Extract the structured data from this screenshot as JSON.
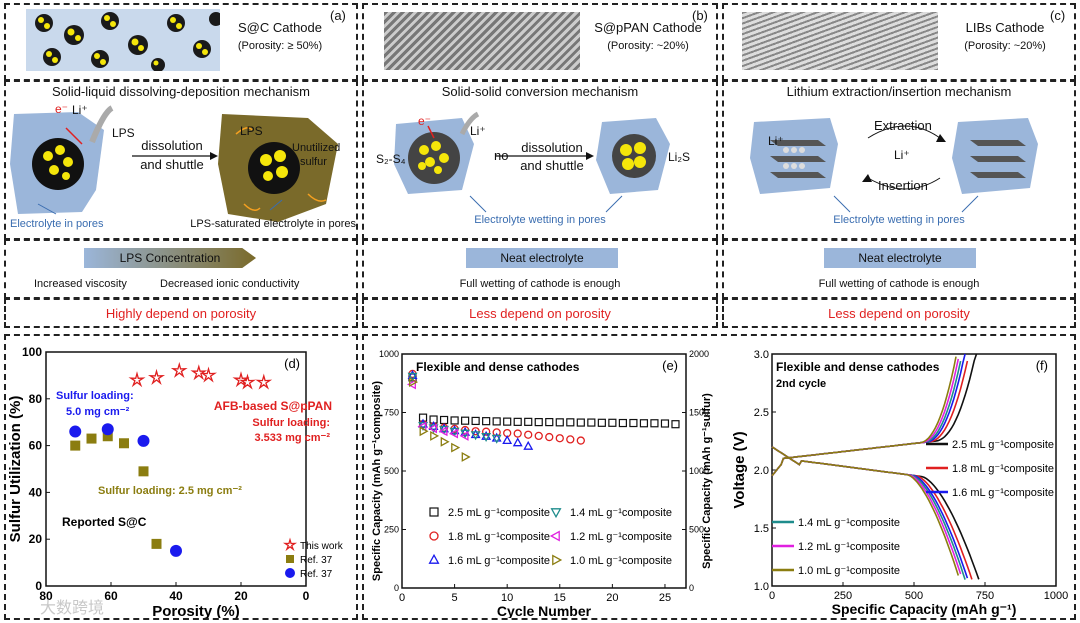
{
  "colors": {
    "red": "#e02020",
    "blue": "#3a6db0",
    "olive": "#8b7d10",
    "teal": "#1e8c8c",
    "magenta": "#e020e0",
    "lightblue": "#9bb6da",
    "sulfur": "#f5e60a"
  },
  "panels": {
    "a": {
      "tag": "(a)",
      "title": "S@C Cathode",
      "porosity": "(Porosity: ≥ 50%)",
      "mechanism": "Solid-liquid dissolving-deposition mechanism",
      "ions": "Li⁺",
      "electron": "e⁻",
      "lps": "LPS",
      "arrow_top": "dissolution",
      "arrow_bottom": "and shuttle",
      "lps_inner": "LPS",
      "unutilized": "Unutilized",
      "unutilized2": "sulfur",
      "label_left": "Electrolyte in pores",
      "label_right": "LPS-saturated electrolyte in pores",
      "bar": "LPS Concentration",
      "prop_left": "Increased viscosity",
      "prop_right": "Decreased ionic conductivity",
      "conclusion": "Highly depend on porosity"
    },
    "b": {
      "tag": "(b)",
      "title": "S@pPAN Cathode",
      "porosity": "(Porosity: ~20%)",
      "mechanism": "Solid-solid conversion mechanism",
      "electron": "e⁻",
      "ions": "Li⁺",
      "left_species": "S₂-S₄",
      "no": "no",
      "arrow_top": "dissolution",
      "arrow_bottom": "and shuttle",
      "right_species": "Li₂S",
      "label": "Electrolyte wetting in pores",
      "bar": "Neat electrolyte",
      "prop": "Full wetting of cathode is enough",
      "conclusion": "Less depend on porosity"
    },
    "c": {
      "tag": "(c)",
      "title": "LIBs Cathode",
      "porosity": "(Porosity: ~20%)",
      "mechanism": "Lithium extraction/insertion mechanism",
      "ions": "Li⁺",
      "extraction": "Extraction",
      "center": "Li⁺",
      "insertion": "Insertion",
      "label": "Electrolyte wetting in pores",
      "bar": "Neat electrolyte",
      "prop": "Full wetting of cathode is enough",
      "conclusion": "Less depend on porosity"
    }
  },
  "chart_data": [
    {
      "panel": "d",
      "type": "scatter",
      "tag": "(d)",
      "xlabel": "Porosity (%)",
      "ylabel": "Sulfur Utilization (%)",
      "xlim": [
        80,
        0
      ],
      "ylim": [
        0,
        100
      ],
      "xticks": [
        80,
        60,
        40,
        20,
        0
      ],
      "yticks": [
        0,
        20,
        40,
        60,
        80,
        100
      ],
      "series": [
        {
          "name": "This work",
          "marker": "star",
          "color": "#e02020",
          "x": [
            52,
            46,
            39,
            33,
            30,
            20,
            18,
            13
          ],
          "y": [
            88,
            89,
            92,
            91,
            90,
            88,
            87,
            87
          ]
        },
        {
          "name": "Ref. 37",
          "marker": "square",
          "color": "#8b7d10",
          "x": [
            71,
            66,
            61,
            56,
            50,
            46
          ],
          "y": [
            60,
            63,
            64,
            61,
            49,
            18
          ]
        },
        {
          "name": "Ref. 37",
          "marker": "circle",
          "color": "#1a1aee",
          "x": [
            71,
            61,
            50,
            40
          ],
          "y": [
            66,
            67,
            62,
            15
          ]
        }
      ],
      "annotations": {
        "blue1": "Sulfur loading:",
        "blue2": "5.0 mg cm⁻²",
        "red1": "AFB-based S@pPAN",
        "red2": "Sulfur loading:",
        "red3": "3.533 mg cm⁻²",
        "olive": "Sulfur loading: 2.5 mg cm⁻²",
        "reported": "Reported S@C"
      }
    },
    {
      "panel": "e",
      "type": "scatter",
      "tag": "(e)",
      "title": "Flexible and dense cathodes",
      "xlabel": "Cycle Number",
      "ylabel": "Specific Capacity (mAh g⁻¹composite)",
      "ylabel2": "Specific Capacity (mAh g⁻¹sulfur)",
      "xlim": [
        0,
        27
      ],
      "ylim": [
        0,
        1000
      ],
      "y2lim": [
        0,
        2000
      ],
      "xticks": [
        0,
        5,
        10,
        15,
        20,
        25
      ],
      "yticks": [
        0,
        250,
        500,
        750,
        1000
      ],
      "y2ticks": [
        0,
        500,
        1000,
        1500,
        2000
      ],
      "series": [
        {
          "name": "2.5 mL g⁻¹composite",
          "marker": "square",
          "color": "#111111",
          "x": [
            1,
            2,
            3,
            4,
            5,
            6,
            7,
            8,
            9,
            10,
            11,
            12,
            13,
            14,
            15,
            16,
            17,
            18,
            19,
            20,
            21,
            22,
            23,
            24,
            25,
            26
          ],
          "y": [
            900,
            728,
            720,
            718,
            716,
            715,
            714,
            713,
            712,
            711,
            710,
            710,
            709,
            709,
            708,
            708,
            707,
            707,
            706,
            706,
            705,
            705,
            704,
            704,
            703,
            700
          ]
        },
        {
          "name": "1.8 mL g⁻¹composite",
          "marker": "circle",
          "color": "#e02020",
          "x": [
            1,
            2,
            3,
            4,
            5,
            6,
            7,
            8,
            9,
            10,
            11,
            12,
            13,
            14,
            15,
            16,
            17
          ],
          "y": [
            915,
            700,
            690,
            685,
            680,
            675,
            670,
            668,
            665,
            662,
            660,
            655,
            650,
            645,
            640,
            635,
            630
          ]
        },
        {
          "name": "1.6 mL g⁻¹composite",
          "marker": "triangle-up",
          "color": "#1a1aee",
          "x": [
            1,
            2,
            3,
            4,
            5,
            6,
            7,
            8,
            9,
            10,
            11,
            12
          ],
          "y": [
            908,
            700,
            690,
            680,
            672,
            665,
            655,
            648,
            640,
            630,
            620,
            605
          ]
        },
        {
          "name": "1.4 mL g⁻¹composite",
          "marker": "triangle-down",
          "color": "#1e8c8c",
          "x": [
            1,
            2,
            3,
            4,
            5,
            6,
            7,
            8,
            9
          ],
          "y": [
            905,
            695,
            685,
            678,
            670,
            662,
            655,
            648,
            640
          ]
        },
        {
          "name": "1.2 mL g⁻¹composite",
          "marker": "triangle-left",
          "color": "#e020e0",
          "x": [
            1,
            2,
            3,
            4,
            5,
            6
          ],
          "y": [
            870,
            690,
            682,
            670,
            660,
            650
          ]
        },
        {
          "name": "1.0 mL g⁻¹composite",
          "marker": "triangle-right",
          "color": "#8b7d10",
          "x": [
            1,
            2,
            3,
            4,
            5,
            6
          ],
          "y": [
            880,
            670,
            650,
            625,
            600,
            560
          ]
        }
      ]
    },
    {
      "panel": "f",
      "type": "line",
      "tag": "(f)",
      "title": "Flexible and dense cathodes",
      "subtitle": "2nd cycle",
      "xlabel": "Specific Capacity (mAh g⁻¹)",
      "ylabel": "Voltage (V)",
      "xlim": [
        0,
        1000
      ],
      "ylim": [
        1.0,
        3.0
      ],
      "xticks": [
        0,
        250,
        500,
        750,
        1000
      ],
      "yticks": [
        1.0,
        1.5,
        2.0,
        2.5,
        3.0
      ],
      "series": [
        {
          "name": "2.5 mL g⁻¹composite",
          "color": "#111111",
          "cap": 730
        },
        {
          "name": "1.8 mL g⁻¹composite",
          "color": "#e02020",
          "cap": 705
        },
        {
          "name": "1.6 mL g⁻¹composite",
          "color": "#1a1aee",
          "cap": 690
        },
        {
          "name": "1.4 mL g⁻¹composite",
          "color": "#1e8c8c",
          "cap": 680
        },
        {
          "name": "1.2 mL g⁻¹composite",
          "color": "#e020e0",
          "cap": 670
        },
        {
          "name": "1.0 mL g⁻¹composite",
          "color": "#8b7d10",
          "cap": 660
        }
      ]
    }
  ],
  "watermark": "大数跨境"
}
